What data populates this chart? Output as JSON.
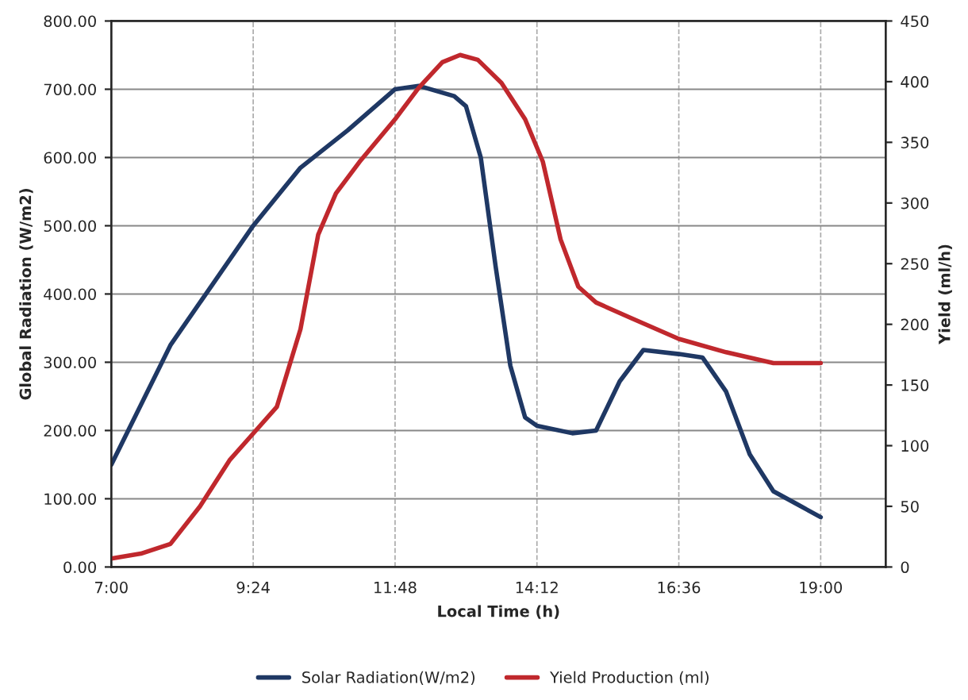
{
  "chart_data": {
    "type": "line",
    "xlabel": "Local Time (h)",
    "ylabel": "Global Radiation (W/m2)",
    "y2label": "Yield (ml/h)",
    "xlim": [
      7,
      20.1
    ],
    "xticks": [
      {
        "value": 7,
        "label": "7:00"
      },
      {
        "value": 9.4,
        "label": "9:24"
      },
      {
        "value": 11.8,
        "label": "11:48"
      },
      {
        "value": 14.2,
        "label": "14:12"
      },
      {
        "value": 16.6,
        "label": "16:36"
      },
      {
        "value": 19,
        "label": "19:00"
      }
    ],
    "ylim": [
      0,
      800
    ],
    "yticks": [
      {
        "value": 0,
        "label": "0.00"
      },
      {
        "value": 100,
        "label": "100.00"
      },
      {
        "value": 200,
        "label": "200.00"
      },
      {
        "value": 300,
        "label": "300.00"
      },
      {
        "value": 400,
        "label": "400.00"
      },
      {
        "value": 500,
        "label": "500.00"
      },
      {
        "value": 600,
        "label": "600.00"
      },
      {
        "value": 700,
        "label": "700.00"
      },
      {
        "value": 800,
        "label": "800.00"
      }
    ],
    "y2lim": [
      0,
      450
    ],
    "y2ticks": [
      0,
      50,
      100,
      150,
      200,
      250,
      300,
      350,
      400,
      450
    ],
    "grid": true,
    "legend": "bottom",
    "series": [
      {
        "name": "Solar Radiation(W/m2)",
        "color": "#1f3864",
        "x": [
          7.0,
          8.0,
          9.4,
          10.2,
          11.0,
          11.8,
          12.2,
          12.8,
          13.0,
          13.25,
          13.5,
          13.75,
          14.0,
          14.2,
          14.8,
          15.2,
          15.6,
          16.0,
          16.6,
          17.0,
          17.4,
          17.8,
          18.2,
          18.6,
          19.0
        ],
        "values": [
          150,
          325,
          500,
          585,
          640,
          700,
          705,
          690,
          675,
          600,
          441,
          295,
          219,
          207,
          196,
          200,
          272,
          318,
          312,
          307,
          257,
          165,
          111,
          92,
          73
        ]
      },
      {
        "name": "Yield Production (ml)",
        "color": "#c0282d",
        "axis": "y2",
        "x": [
          7.0,
          7.5,
          8.0,
          8.5,
          9.0,
          9.4,
          9.8,
          10.2,
          10.5,
          10.8,
          11.2,
          11.8,
          12.2,
          12.6,
          12.9,
          13.2,
          13.6,
          14.0,
          14.3,
          14.6,
          14.9,
          15.2,
          15.8,
          16.6,
          17.4,
          18.2,
          19.0
        ],
        "values": [
          7,
          11,
          19,
          50,
          88,
          110,
          132,
          196,
          274,
          308,
          334,
          369,
          395,
          416,
          422,
          418,
          399,
          369,
          334,
          270,
          231,
          218,
          205,
          188,
          177,
          168,
          168
        ]
      }
    ]
  }
}
